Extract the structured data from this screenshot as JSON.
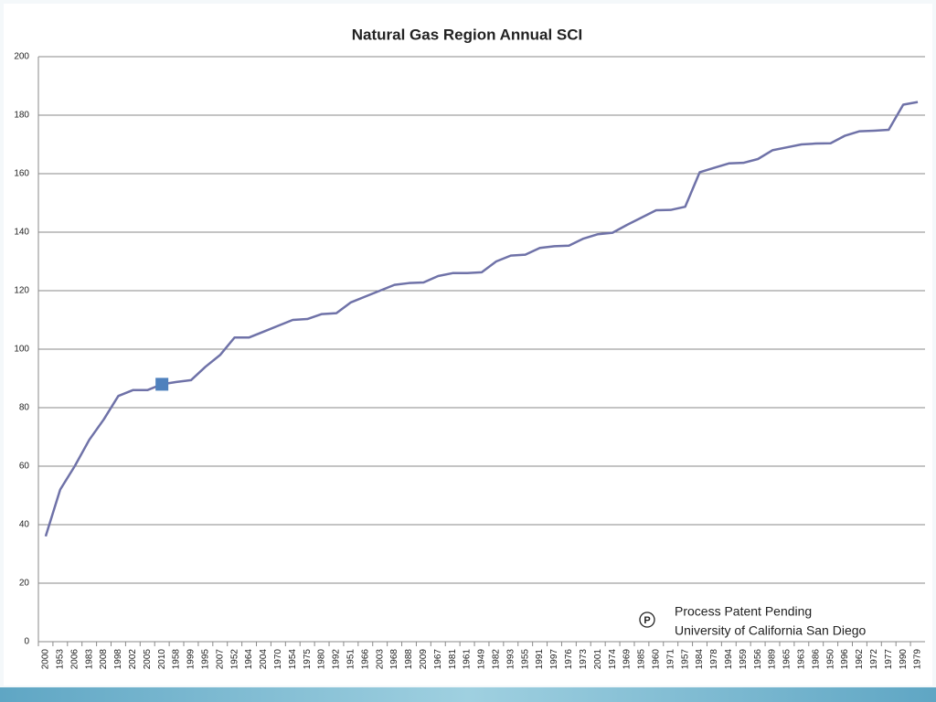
{
  "chart_data": {
    "type": "line",
    "title": "Natural Gas Region Annual SCI",
    "categories": [
      "2000",
      "1953",
      "2006",
      "1983",
      "2008",
      "1998",
      "2002",
      "2005",
      "2010",
      "1958",
      "1999",
      "1995",
      "2007",
      "1952",
      "1964",
      "2004",
      "1970",
      "1954",
      "1975",
      "1980",
      "1992",
      "1951",
      "1966",
      "2003",
      "1968",
      "1988",
      "2009",
      "1967",
      "1981",
      "1961",
      "1949",
      "1982",
      "1993",
      "1955",
      "1991",
      "1997",
      "1976",
      "1973",
      "2001",
      "1974",
      "1969",
      "1985",
      "1960",
      "1971",
      "1957",
      "1984",
      "1978",
      "1994",
      "1959",
      "1956",
      "1989",
      "1965",
      "1963",
      "1986",
      "1950",
      "1996",
      "1962",
      "1972",
      "1977",
      "1990",
      "1979"
    ],
    "series": [
      {
        "name": "SCI",
        "color": "#6f72a8",
        "values": [
          36,
          52,
          60,
          69,
          76,
          84,
          86,
          86,
          88,
          88.8,
          89.4,
          94,
          98,
          104,
          104,
          106,
          108,
          110,
          110.3,
          112,
          112.3,
          116,
          118,
          120,
          122,
          122.6,
          122.8,
          125,
          126,
          126,
          126.3,
          130,
          132,
          132.3,
          134.6,
          135.2,
          135.4,
          137.8,
          139.3,
          139.8,
          142.5,
          145,
          147.5,
          147.6,
          148.7,
          160.5,
          162,
          163.5,
          163.7,
          165,
          168,
          169,
          170,
          170.3,
          170.4,
          173,
          174.5,
          174.7,
          175,
          183.6,
          184.5
        ]
      }
    ],
    "highlight": {
      "category_index": 8,
      "color": "#4f81bd"
    },
    "ylim": [
      0,
      200
    ],
    "yticks": [
      0,
      20,
      40,
      60,
      80,
      100,
      120,
      140,
      160,
      180,
      200
    ],
    "grid": true,
    "annotations": [
      "Process Patent Pending",
      "University of California San Diego"
    ],
    "symbol": "P"
  }
}
